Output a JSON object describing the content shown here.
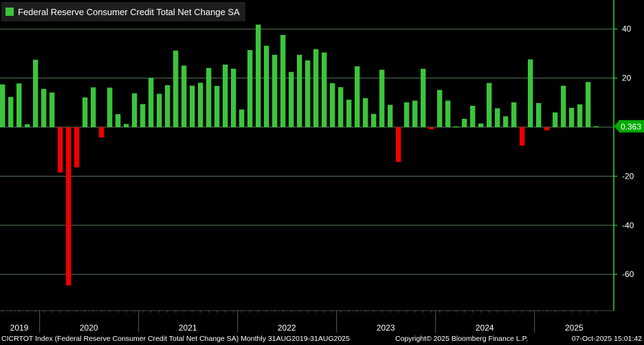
{
  "chart_data": {
    "type": "bar",
    "title": "Federal Reserve Consumer Credit Total Net Change SA",
    "xlabel": "",
    "ylabel": "",
    "ylim": [
      -75,
      51
    ],
    "yticks": [
      40,
      20,
      -20,
      -40,
      -60
    ],
    "year_labels": [
      "2019",
      "2020",
      "2021",
      "2022",
      "2023",
      "2024",
      "2025"
    ],
    "start_month": "2019-08",
    "last_value_label": "0.363",
    "colors": {
      "positive": "#3cc43c",
      "negative": "#ee0000",
      "grid": "#5a7a5a",
      "axis": "#32d232",
      "label_box": "#00aa00"
    },
    "values": [
      17.4,
      12.3,
      17.8,
      1.2,
      27.5,
      15.6,
      14.1,
      -18.5,
      -64.5,
      -16.4,
      12.1,
      16.2,
      -4.2,
      16.1,
      5.3,
      1.3,
      13.8,
      9.4,
      20.1,
      13.6,
      17.1,
      31.2,
      25.1,
      16.9,
      18.1,
      24.1,
      16.8,
      25.5,
      23.8,
      7.2,
      31.4,
      41.8,
      33.2,
      29.5,
      37.6,
      22.5,
      29.5,
      27.2,
      31.8,
      30.4,
      17.9,
      16.3,
      11.2,
      24.8,
      11.8,
      5.4,
      23.4,
      9.1,
      -14.2,
      10.1,
      10.8,
      23.8,
      -0.9,
      15.2,
      10.8,
      0.3,
      3.4,
      8.7,
      1.5,
      18.0,
      7.7,
      4.4,
      10.1,
      -7.5,
      27.6,
      9.8,
      -1.3,
      6.0,
      16.9,
      7.9,
      9.3,
      18.4,
      0.363
    ],
    "annotations": []
  },
  "footer": {
    "left": "CICRTOT Index (Federal Reserve Consumer Credit Total Net Change SA) Monthly 31AUG2019-31AUG2025",
    "middle": "Copyright© 2025 Bloomberg Finance L.P.",
    "right": "07-Oct-2025 15:01:42"
  }
}
